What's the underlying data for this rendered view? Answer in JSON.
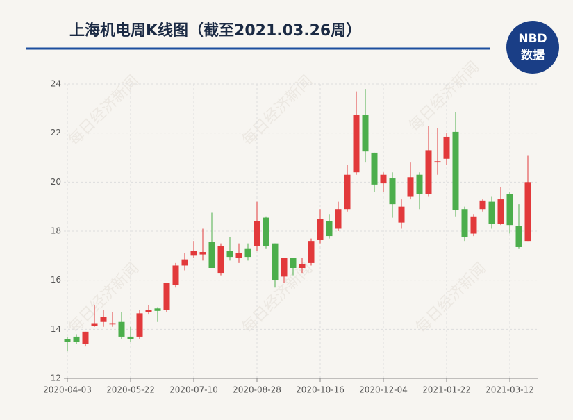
{
  "chart_data": {
    "type": "candlestick",
    "title": "上海机电周K线图（截至2021.03.26周）",
    "logo_top": "NBD",
    "logo_bottom": "数据",
    "watermark": "每日经济新闻",
    "categories": [
      "2020-04-03",
      null,
      null,
      null,
      null,
      null,
      null,
      "2020-05-22",
      null,
      null,
      null,
      null,
      null,
      null,
      "2020-07-10",
      null,
      null,
      null,
      null,
      null,
      null,
      "2020-08-28",
      null,
      null,
      null,
      null,
      null,
      null,
      "2020-10-16",
      null,
      null,
      null,
      null,
      null,
      null,
      "2020-12-04",
      null,
      null,
      null,
      null,
      null,
      null,
      "2021-01-22",
      null,
      null,
      null,
      null,
      null,
      null,
      "2021-03-12",
      null,
      null
    ],
    "open": [
      13.6,
      13.7,
      13.4,
      14.15,
      14.3,
      14.2,
      14.3,
      13.7,
      13.7,
      14.7,
      14.85,
      14.8,
      15.8,
      16.6,
      17.0,
      17.05,
      17.55,
      16.3,
      17.2,
      16.9,
      17.3,
      17.4,
      18.55,
      17.5,
      16.15,
      16.9,
      16.5,
      16.7,
      17.65,
      18.4,
      18.1,
      18.9,
      20.4,
      22.75,
      21.2,
      19.95,
      20.15,
      18.35,
      19.4,
      20.3,
      19.5,
      20.8,
      20.95,
      22.05,
      18.9,
      17.9,
      18.9,
      19.2,
      18.3,
      19.5,
      18.2,
      17.6
    ],
    "high": [
      13.7,
      13.8,
      13.9,
      15.0,
      14.8,
      14.7,
      14.7,
      14.1,
      14.8,
      15.0,
      14.9,
      15.9,
      16.7,
      17.1,
      17.6,
      18.1,
      18.75,
      17.5,
      17.75,
      17.5,
      17.5,
      19.2,
      18.6,
      17.5,
      16.9,
      16.9,
      16.9,
      17.7,
      18.9,
      18.7,
      19.2,
      20.7,
      23.7,
      23.8,
      21.2,
      20.4,
      20.4,
      19.3,
      20.8,
      20.4,
      22.3,
      22.2,
      22.0,
      22.85,
      19.0,
      18.7,
      19.3,
      19.4,
      19.8,
      19.6,
      19.1,
      21.1
    ],
    "low": [
      13.1,
      13.4,
      13.3,
      14.1,
      14.1,
      14.1,
      13.6,
      13.5,
      13.6,
      14.6,
      14.3,
      14.7,
      15.7,
      16.4,
      16.9,
      16.8,
      16.5,
      16.2,
      16.8,
      16.7,
      16.8,
      17.2,
      17.3,
      15.7,
      15.9,
      16.2,
      16.3,
      16.6,
      17.5,
      17.7,
      18.0,
      18.8,
      20.3,
      20.8,
      19.6,
      19.6,
      18.55,
      18.1,
      19.3,
      18.9,
      19.4,
      20.3,
      20.7,
      18.6,
      17.6,
      17.8,
      18.8,
      18.1,
      18.25,
      17.9,
      17.3,
      17.6
    ],
    "close": [
      13.5,
      13.5,
      13.9,
      14.25,
      14.5,
      14.25,
      13.7,
      13.6,
      14.65,
      14.8,
      14.75,
      15.9,
      16.6,
      16.85,
      17.2,
      17.15,
      16.5,
      17.4,
      16.95,
      17.1,
      16.95,
      18.4,
      17.4,
      16.0,
      16.9,
      16.5,
      16.65,
      17.6,
      18.5,
      17.8,
      18.9,
      20.3,
      22.75,
      21.25,
      19.9,
      20.3,
      19.1,
      19.0,
      20.2,
      19.5,
      21.3,
      20.85,
      21.85,
      18.85,
      17.75,
      18.6,
      19.25,
      18.3,
      19.3,
      18.25,
      17.35,
      20.0
    ],
    "up_color": "#e2393b",
    "down_color": "#4cae4c",
    "ylim": [
      12,
      24
    ],
    "yticks": [
      12,
      14,
      16,
      18,
      20,
      22,
      24
    ],
    "grid": true
  }
}
